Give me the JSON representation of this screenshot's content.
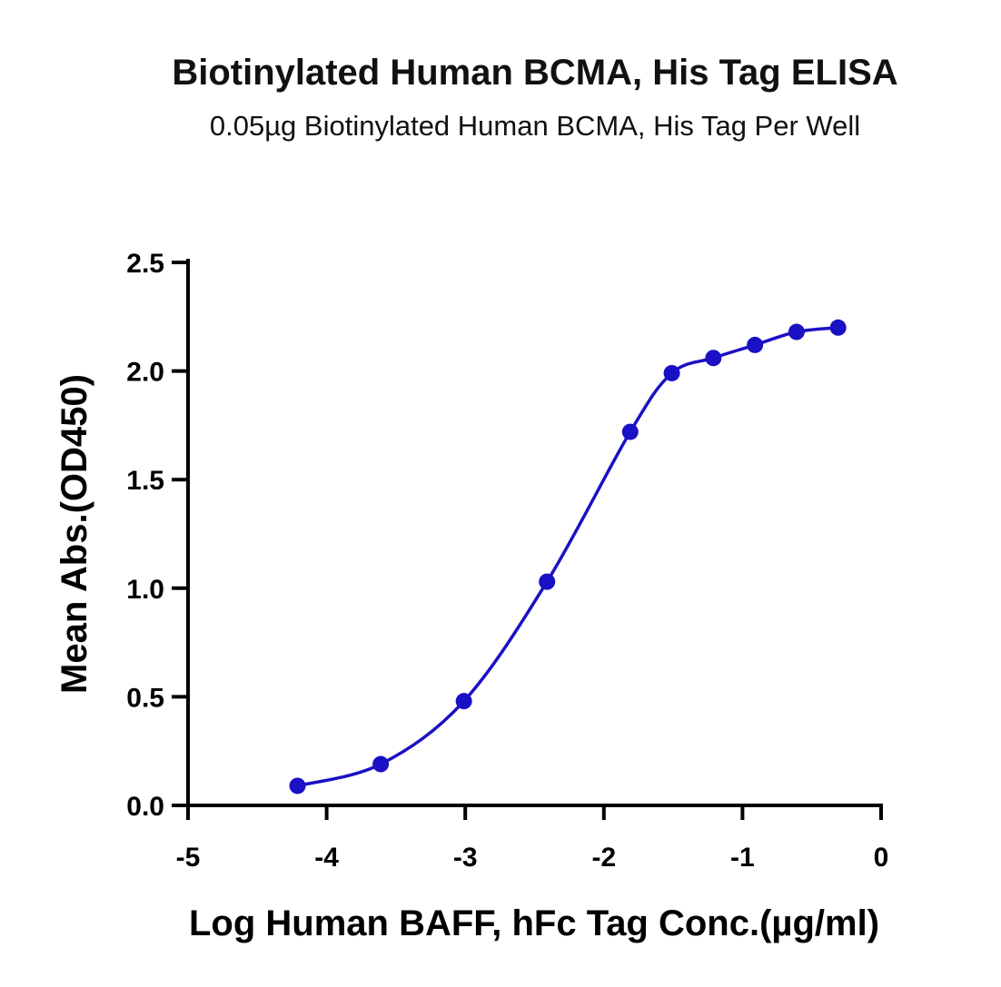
{
  "chart_data": {
    "type": "scatter",
    "title": "Biotinylated Human BCMA, His Tag ELISA",
    "subtitle": "0.05µg Biotinylated Human BCMA, His Tag Per Well",
    "xlabel": "Log Human BAFF, hFc Tag Conc.(µg/ml)",
    "ylabel": "Mean Abs.(OD450)",
    "xlim": [
      -5,
      0
    ],
    "ylim": [
      0,
      2.5
    ],
    "xticks": [
      -5,
      -4,
      -3,
      -2,
      -1,
      0
    ],
    "xtick_labels": [
      "-5",
      "-4",
      "-3",
      "-2",
      "-1",
      "0"
    ],
    "yticks": [
      0,
      0.5,
      1.0,
      1.5,
      2.0,
      2.5
    ],
    "ytick_labels": [
      "0.0",
      "0.5",
      "1.0",
      "1.5",
      "2.0",
      "2.5"
    ],
    "grid": false,
    "color": "#1a10c4",
    "series": [
      {
        "x": [
          -4.21,
          -3.61,
          -3.01,
          -2.41,
          -1.81,
          -1.51,
          -1.21,
          -0.91,
          -0.61,
          -0.31
        ],
        "y": [
          0.09,
          0.19,
          0.48,
          1.03,
          1.72,
          1.99,
          2.06,
          2.12,
          2.18,
          2.2
        ],
        "fit": "four-parameter logistic curve"
      }
    ]
  }
}
